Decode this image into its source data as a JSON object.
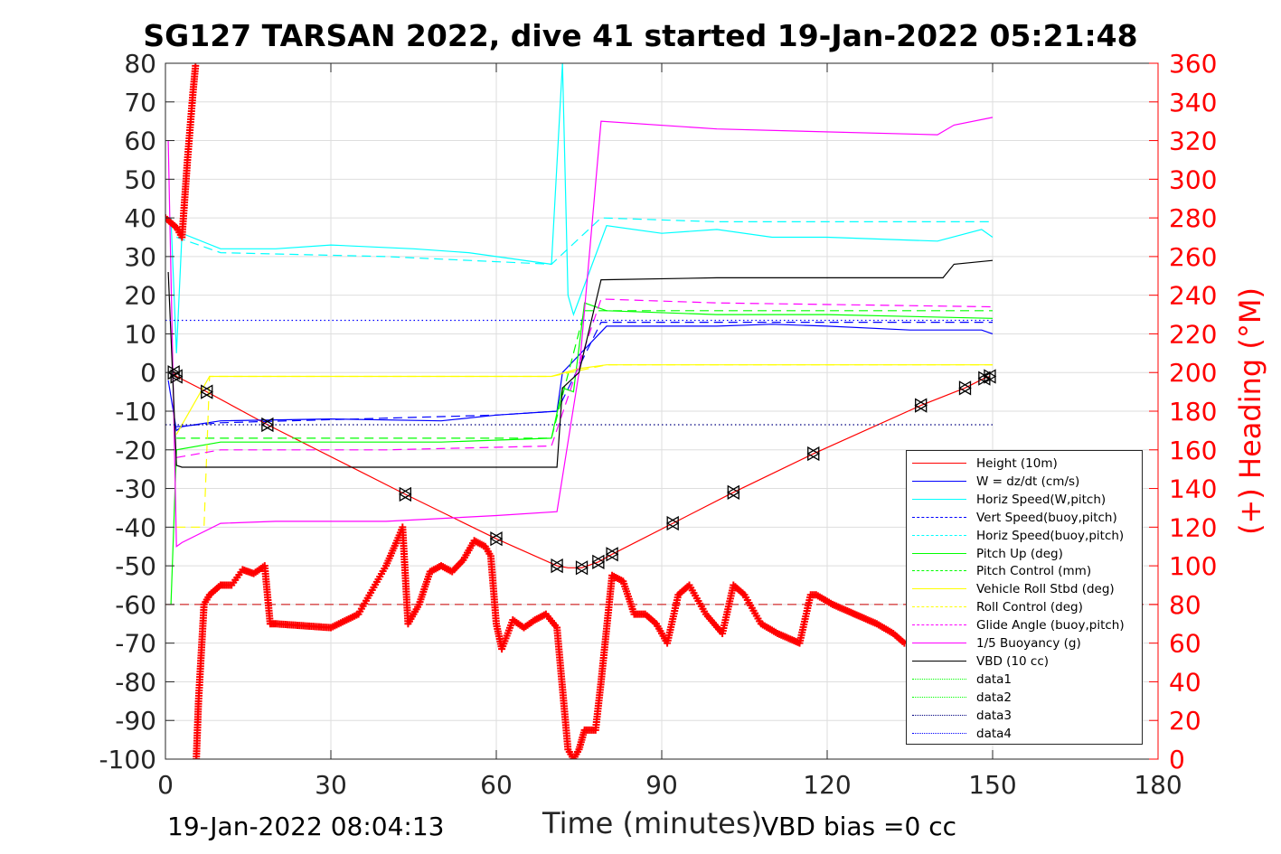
{
  "title": "SG127 TARSAN 2022, dive 41 started 19-Jan-2022 05:21:48",
  "footer_left": "19-Jan-2022 08:04:13",
  "footer_right": "VBD bias =0 cc",
  "chart_data": {
    "type": "line",
    "title": "SG127 TARSAN 2022, dive 41 started 19-Jan-2022 05:21:48",
    "xlabel": "Time (minutes)",
    "ylabel": "",
    "ylabel_right": "(+) Heading (°M)",
    "xlim": [
      0,
      180
    ],
    "ylim": [
      -100,
      80
    ],
    "ylim_right": [
      0,
      360
    ],
    "x_ticks": [
      "0",
      "30",
      "60",
      "90",
      "120",
      "150",
      "180"
    ],
    "y_ticks": [
      "80",
      "70",
      "60",
      "50",
      "40",
      "30",
      "20",
      "10",
      "0",
      "-10",
      "-20",
      "-30",
      "-40",
      "-50",
      "-60",
      "-70",
      "-80",
      "-90",
      "-100"
    ],
    "y_ticks_right": [
      "360",
      "340",
      "320",
      "300",
      "280",
      "260",
      "240",
      "220",
      "200",
      "180",
      "160",
      "140",
      "120",
      "100",
      "80",
      "60",
      "40",
      "20",
      "0"
    ],
    "grid": true,
    "legend_position": "lower-right",
    "series": [
      {
        "name": "Height (10m)",
        "color": "#ff0000",
        "style": "solid",
        "x": [
          1.5,
          2,
          7.5,
          18.5,
          43.5,
          60,
          71,
          73,
          75.5,
          78.5,
          81,
          92,
          103,
          117.5,
          137,
          145,
          148.5,
          149.5
        ],
        "y": [
          0,
          -1,
          -5,
          -13.5,
          -31.5,
          -43,
          -50,
          -50.5,
          -50.5,
          -49,
          -47,
          -39,
          -31,
          -21,
          -8.5,
          -4,
          -1.5,
          -1
        ]
      },
      {
        "name": "W = dz/dt (cm/s)",
        "color": "#0000ff",
        "style": "solid",
        "x": [
          0.5,
          2,
          3,
          10,
          30,
          50,
          60,
          71,
          72,
          80,
          90,
          100,
          110,
          120,
          135,
          148,
          150
        ],
        "y": [
          -2,
          -15,
          -14,
          -12.5,
          -12,
          -12.5,
          -11,
          -10,
          0,
          12,
          12,
          12,
          12.5,
          12,
          11,
          11,
          10
        ]
      },
      {
        "name": "Horiz Speed(W,pitch)",
        "color": "#00ffff",
        "style": "solid",
        "x": [
          1,
          2,
          3,
          10,
          20,
          30,
          45,
          55,
          60,
          70,
          72,
          73,
          74,
          80,
          90,
          100,
          110,
          120,
          140,
          148,
          150
        ],
        "y": [
          40,
          5,
          36,
          32,
          32,
          33,
          32,
          31,
          30,
          28,
          80,
          20,
          15,
          38,
          36,
          37,
          35,
          35,
          34,
          37,
          35
        ]
      },
      {
        "name": "Vert Speed(buoy,pitch)",
        "color": "#0000ff",
        "style": "dashed",
        "x": [
          2,
          10,
          60,
          71,
          79,
          100,
          150
        ],
        "y": [
          -14,
          -13,
          -11,
          -10,
          13,
          13,
          13
        ]
      },
      {
        "name": "Horiz Speed(buoy,pitch)",
        "color": "#00ffff",
        "style": "dashed",
        "x": [
          2,
          10,
          40,
          70,
          79,
          100,
          150
        ],
        "y": [
          35,
          31,
          30,
          28,
          40,
          39,
          39
        ]
      },
      {
        "name": "Pitch Up (deg)",
        "color": "#00ff00",
        "style": "solid",
        "x": [
          1,
          2,
          10,
          30,
          50,
          70,
          72,
          74,
          76,
          80,
          100,
          120,
          150
        ],
        "y": [
          -60,
          -20,
          -18,
          -18,
          -18,
          -17,
          -4,
          -5,
          18,
          16,
          15,
          15,
          14
        ]
      },
      {
        "name": "Pitch Control (mm)",
        "color": "#00ff00",
        "style": "dashed",
        "x": [
          2,
          70,
          76,
          150
        ],
        "y": [
          -17,
          -17,
          16,
          16
        ]
      },
      {
        "name": "Vehicle Roll Stbd (deg)",
        "color": "#ffff00",
        "style": "solid",
        "x": [
          2,
          8,
          30,
          60,
          70,
          75,
          80,
          100,
          150
        ],
        "y": [
          -16,
          -1,
          -1,
          -1,
          -1,
          1,
          2,
          2,
          2
        ]
      },
      {
        "name": "Roll Control (deg)",
        "color": "#ffff00",
        "style": "dashed",
        "x": [
          2,
          7,
          8,
          70,
          80,
          150
        ],
        "y": [
          -40,
          -40,
          -1,
          -1,
          2,
          2
        ]
      },
      {
        "name": "Glide Angle (buoy,pitch)",
        "color": "#ff00ff",
        "style": "dashed",
        "x": [
          2,
          10,
          40,
          70,
          79,
          100,
          150
        ],
        "y": [
          -22,
          -20,
          -20,
          -19,
          19,
          18,
          17
        ]
      },
      {
        "name": "1/5 Buoyancy (g)",
        "color": "#ff00ff",
        "style": "solid",
        "x": [
          0.5,
          2,
          3,
          10,
          20,
          40,
          60,
          71,
          75,
          79,
          100,
          140,
          143,
          150
        ],
        "y": [
          60,
          -45,
          -44,
          -39,
          -38.5,
          -38.5,
          -37,
          -36,
          0,
          65,
          63,
          61.5,
          64,
          66
        ]
      },
      {
        "name": "VBD (10 cc)",
        "color": "#000000",
        "style": "solid",
        "x": [
          0.5,
          2,
          3,
          71,
          72,
          75,
          79,
          100,
          141,
          143,
          150
        ],
        "y": [
          26,
          -24,
          -24.5,
          -24.5,
          -4,
          0,
          24,
          24.5,
          24.5,
          28,
          29
        ]
      },
      {
        "name": "data1",
        "color": "#00ff00",
        "style": "dotted",
        "x": [],
        "y": []
      },
      {
        "name": "data2",
        "color": "#00ff00",
        "style": "dotted",
        "x": [],
        "y": []
      },
      {
        "name": "data3",
        "color": "#000080",
        "style": "dotted",
        "x": [
          0,
          150
        ],
        "y": [
          -13.5,
          -13.5
        ]
      },
      {
        "name": "data4",
        "color": "#0000ff",
        "style": "dotted",
        "x": [
          0,
          150
        ],
        "y": [
          13.5,
          13.5
        ]
      }
    ],
    "heading_series": {
      "axis": "right",
      "color": "#ff0000",
      "marker": "+",
      "x": [
        0,
        2,
        3,
        4,
        5,
        5.5,
        5.6,
        6,
        7,
        8,
        10,
        12,
        14,
        16,
        18,
        19,
        20,
        25,
        30,
        35,
        40,
        42,
        43,
        44,
        46,
        48,
        50,
        52,
        54,
        56,
        58,
        59,
        60,
        61,
        63,
        65,
        67,
        69,
        71,
        73,
        74,
        75,
        76,
        78,
        79,
        81,
        83,
        85,
        87,
        89,
        91,
        93,
        95,
        98,
        101,
        103,
        105,
        108,
        111,
        115,
        117,
        118,
        121,
        125,
        129,
        132,
        134
      ],
      "y": [
        280,
        275,
        270,
        310,
        345,
        360,
        0,
        30,
        80,
        85,
        90,
        90,
        98,
        96,
        100,
        70,
        70,
        69,
        68,
        75,
        100,
        113,
        120,
        70,
        80,
        97,
        100,
        97,
        103,
        113,
        110,
        105,
        70,
        57,
        72,
        68,
        72,
        75,
        68,
        5,
        0,
        5,
        15,
        15,
        40,
        95,
        92,
        75,
        75,
        70,
        60,
        85,
        90,
        75,
        65,
        90,
        85,
        70,
        65,
        60,
        85,
        85,
        80,
        75,
        70,
        65,
        60
      ]
    },
    "constant_lines": [
      {
        "axis": "right",
        "value": 80,
        "color": "#cc0000",
        "style": "dashed"
      }
    ],
    "waypoint_markers_x": [
      1.5,
      2,
      7.5,
      18.5,
      43.5,
      60,
      71,
      75.5,
      78.5,
      81,
      92,
      103,
      117.5,
      137,
      145,
      148.5,
      149.5
    ]
  }
}
